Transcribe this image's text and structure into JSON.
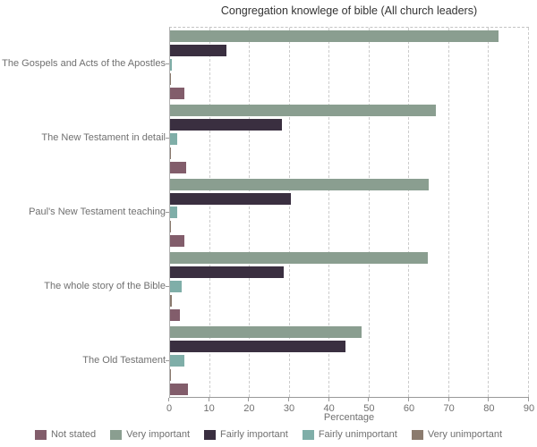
{
  "title": "Congregation knowlege of bible (All church leaders)",
  "chart_data": {
    "type": "bar",
    "orientation": "horizontal",
    "title": "Congregation knowlege of bible (All church leaders)",
    "xlabel": "Percentage",
    "xlim": [
      0,
      90
    ],
    "xticks": [
      0,
      10,
      20,
      30,
      40,
      50,
      60,
      70,
      80,
      90
    ],
    "grid": "vertical-dashed",
    "legend_position": "bottom",
    "categories": [
      "The Gospels and Acts of the Apostles",
      "The New Testament in detail",
      "Paul's New Testament teaching",
      "The whole story of the Bible",
      "The Old Testament"
    ],
    "series": [
      {
        "name": "Very important",
        "color": "#8A9E90",
        "values": [
          82.3,
          66.7,
          64.8,
          64.7,
          48.1
        ]
      },
      {
        "name": "Fairly important",
        "color": "#3A2F40",
        "values": [
          14.2,
          28.0,
          30.2,
          28.4,
          44.1
        ]
      },
      {
        "name": "Fairly unimportant",
        "color": "#7FAEA8",
        "values": [
          0.5,
          1.9,
          1.7,
          3.0,
          3.7
        ]
      },
      {
        "name": "Very unimportant",
        "color": "#8B7B6E",
        "values": [
          0.3,
          0.2,
          0.3,
          0.4,
          0.2
        ]
      },
      {
        "name": "Not stated",
        "color": "#825D6B",
        "values": [
          3.6,
          4.1,
          3.6,
          2.5,
          4.6
        ]
      }
    ],
    "legend_order": [
      "Not stated",
      "Very important",
      "Fairly important",
      "Fairly unimportant",
      "Very unimportant"
    ]
  }
}
